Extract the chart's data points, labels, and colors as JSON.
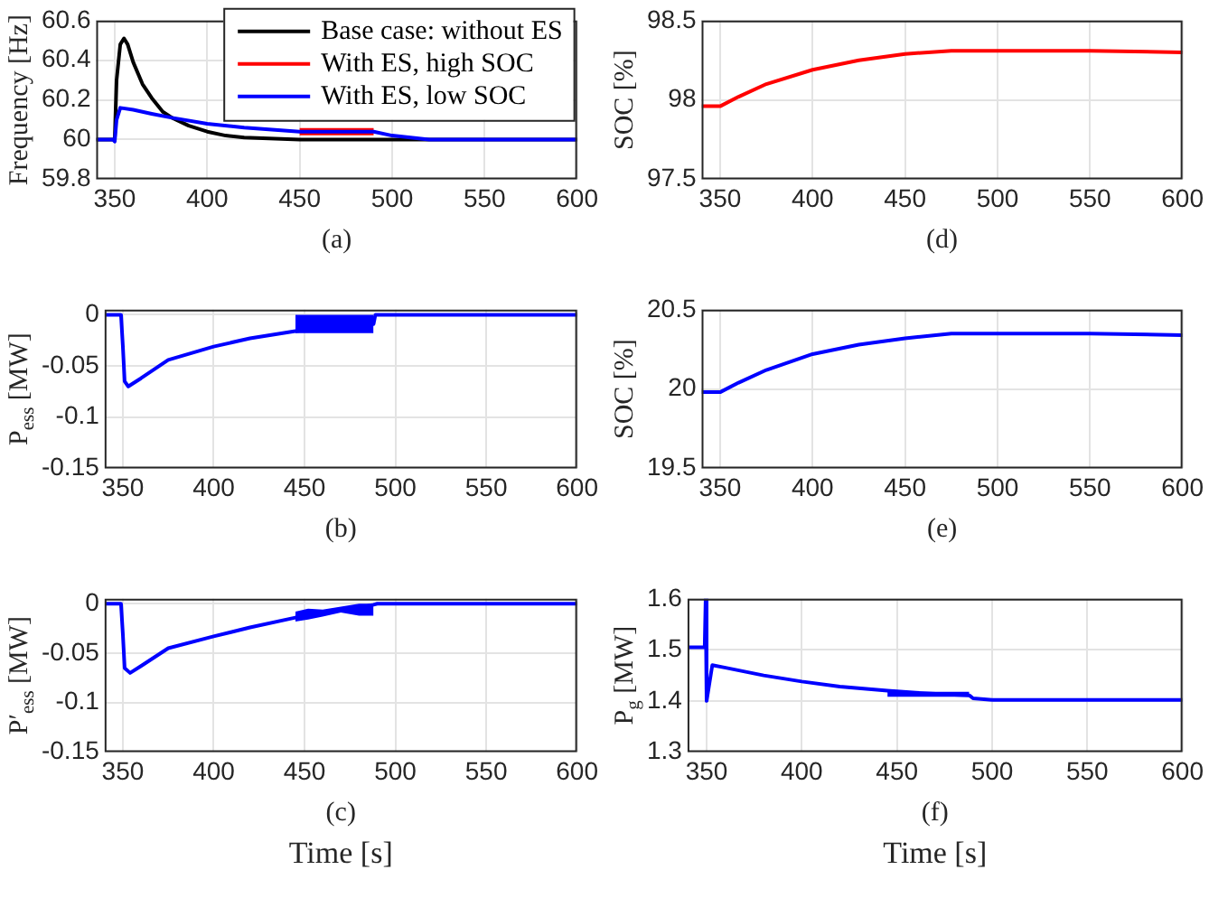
{
  "chart_data": [
    {
      "type": "line",
      "ylabel": "Frequency [Hz]",
      "annotations": [
        "(a)"
      ],
      "xlim": [
        340,
        600
      ],
      "xticks": [
        350,
        400,
        450,
        500,
        550,
        600
      ],
      "ylim": [
        59.8,
        60.6
      ],
      "yticks": [
        59.8,
        60,
        60.2,
        60.4,
        60.6
      ],
      "grid": true,
      "legend": "top right",
      "series": [
        {
          "name": "Base case: without ES",
          "color": "#000000",
          "x": [
            340,
            350,
            351,
            353,
            355,
            357,
            360,
            365,
            370,
            376,
            381,
            390,
            400,
            410,
            420,
            450,
            600
          ],
          "values": [
            60,
            60,
            60.3,
            60.48,
            60.51,
            60.48,
            60.39,
            60.28,
            60.21,
            60.14,
            60.11,
            60.07,
            60.04,
            60.02,
            60.01,
            60,
            60
          ]
        },
        {
          "name": "With ES, high SOC",
          "color": "#ff0000",
          "x": [
            450,
            490
          ],
          "values": [
            60.04,
            60.04
          ]
        },
        {
          "name": "With ES, low SOC",
          "color": "#0000ff",
          "x": [
            340,
            349,
            350,
            351,
            353,
            360,
            370,
            381,
            400,
            420,
            450,
            490,
            500,
            510,
            520,
            600
          ],
          "values": [
            60,
            60,
            59.99,
            60.1,
            60.16,
            60.15,
            60.13,
            60.11,
            60.08,
            60.06,
            60.04,
            60.04,
            60.02,
            60.01,
            60,
            60
          ]
        }
      ]
    },
    {
      "type": "line",
      "ylabel": "SOC [%]",
      "annotations": [
        "(d)"
      ],
      "xlim": [
        340,
        600
      ],
      "xticks": [
        350,
        400,
        450,
        500,
        550,
        600
      ],
      "ylim": [
        97.5,
        98.5
      ],
      "yticks": [
        97.5,
        98,
        98.5
      ],
      "grid": true,
      "series": [
        {
          "color": "#ff0000",
          "x": [
            340,
            350,
            360,
            375,
            400,
            425,
            450,
            475,
            490,
            550,
            600
          ],
          "values": [
            97.96,
            97.96,
            98.02,
            98.1,
            98.19,
            98.25,
            98.29,
            98.31,
            98.31,
            98.31,
            98.3
          ]
        }
      ]
    },
    {
      "type": "line",
      "ylabel": "P$_{ess}$ [MW]",
      "annotations": [
        "(b)"
      ],
      "xlim": [
        340,
        600
      ],
      "xticks": [
        350,
        400,
        450,
        500,
        550,
        600
      ],
      "ylim": [
        -0.15,
        0.005
      ],
      "yticks": [
        -0.15,
        -0.1,
        -0.05,
        0
      ],
      "grid": true,
      "series": [
        {
          "color": "#0000ff",
          "x": [
            340,
            349,
            350,
            351,
            353,
            360,
            375,
            400,
            420,
            445,
            460,
            475,
            488,
            489,
            490,
            600
          ],
          "values": [
            0,
            0,
            -0.03,
            -0.065,
            -0.07,
            -0.062,
            -0.044,
            -0.031,
            -0.023,
            -0.016,
            -0.013,
            -0.011,
            -0.009,
            0,
            0,
            0
          ],
          "lower": [
            null,
            null,
            null,
            null,
            null,
            null,
            null,
            null,
            null,
            -0.018,
            -0.018,
            -0.018,
            -0.018,
            null,
            null,
            null
          ],
          "upper": [
            null,
            null,
            null,
            null,
            null,
            null,
            null,
            null,
            null,
            0,
            0,
            0,
            0,
            null,
            null,
            null
          ]
        }
      ]
    },
    {
      "type": "line",
      "ylabel": "SOC [%]",
      "annotations": [
        "(e)"
      ],
      "xlim": [
        340,
        600
      ],
      "xticks": [
        350,
        400,
        450,
        500,
        550,
        600
      ],
      "ylim": [
        19.5,
        20.5
      ],
      "yticks": [
        19.5,
        20,
        20.5
      ],
      "grid": true,
      "series": [
        {
          "color": "#0000ff",
          "x": [
            340,
            350,
            360,
            375,
            400,
            425,
            450,
            475,
            490,
            550,
            600
          ],
          "values": [
            19.98,
            19.98,
            20.04,
            20.12,
            20.22,
            20.28,
            20.32,
            20.35,
            20.35,
            20.35,
            20.34
          ]
        }
      ]
    },
    {
      "type": "line",
      "ylabel": "P′$_{ess}$ [MW]",
      "xlabel": "Time [s]",
      "annotations": [
        "(c)"
      ],
      "xlim": [
        340,
        600
      ],
      "xticks": [
        350,
        400,
        450,
        500,
        550,
        600
      ],
      "ylim": [
        -0.15,
        0.005
      ],
      "yticks": [
        -0.15,
        -0.1,
        -0.05,
        0
      ],
      "grid": true,
      "series": [
        {
          "color": "#0000ff",
          "x": [
            340,
            349,
            350,
            351,
            354,
            360,
            375,
            400,
            420,
            445,
            452,
            460,
            470,
            480,
            488,
            490,
            600
          ],
          "values": [
            0,
            0,
            -0.03,
            -0.065,
            -0.07,
            -0.063,
            -0.045,
            -0.033,
            -0.024,
            -0.014,
            -0.013,
            -0.01,
            -0.006,
            -0.004,
            -0.001,
            0,
            0
          ],
          "lower": [
            null,
            null,
            null,
            null,
            null,
            null,
            null,
            null,
            null,
            -0.018,
            -0.016,
            -0.013,
            -0.009,
            -0.012,
            -0.012,
            null,
            null
          ],
          "upper": [
            null,
            null,
            null,
            null,
            null,
            null,
            null,
            null,
            null,
            -0.008,
            -0.005,
            -0.006,
            -0.003,
            0,
            0,
            null,
            null
          ]
        }
      ]
    },
    {
      "type": "line",
      "ylabel": "P$_{g}$ [MW]",
      "xlabel": "Time [s]",
      "annotations": [
        "(f)"
      ],
      "xlim": [
        340,
        600
      ],
      "xticks": [
        350,
        400,
        450,
        500,
        550,
        600
      ],
      "ylim": [
        1.3,
        1.6
      ],
      "yticks": [
        1.3,
        1.4,
        1.5,
        1.6
      ],
      "grid": true,
      "series": [
        {
          "color": "#0000ff",
          "x": [
            340,
            349,
            349.5,
            350,
            353,
            360,
            380,
            400,
            420,
            445,
            460,
            475,
            488,
            490,
            500,
            600
          ],
          "values": [
            1.505,
            1.505,
            1.6,
            1.4,
            1.47,
            1.465,
            1.45,
            1.438,
            1.428,
            1.42,
            1.416,
            1.413,
            1.411,
            1.405,
            1.402,
            1.402
          ],
          "lower": [
            null,
            null,
            null,
            null,
            null,
            null,
            null,
            null,
            null,
            1.408,
            1.408,
            1.408,
            1.408,
            null,
            null,
            null
          ],
          "upper": [
            null,
            null,
            null,
            null,
            null,
            null,
            null,
            null,
            null,
            1.418,
            1.418,
            1.418,
            1.418,
            null,
            null,
            null
          ]
        }
      ]
    }
  ]
}
